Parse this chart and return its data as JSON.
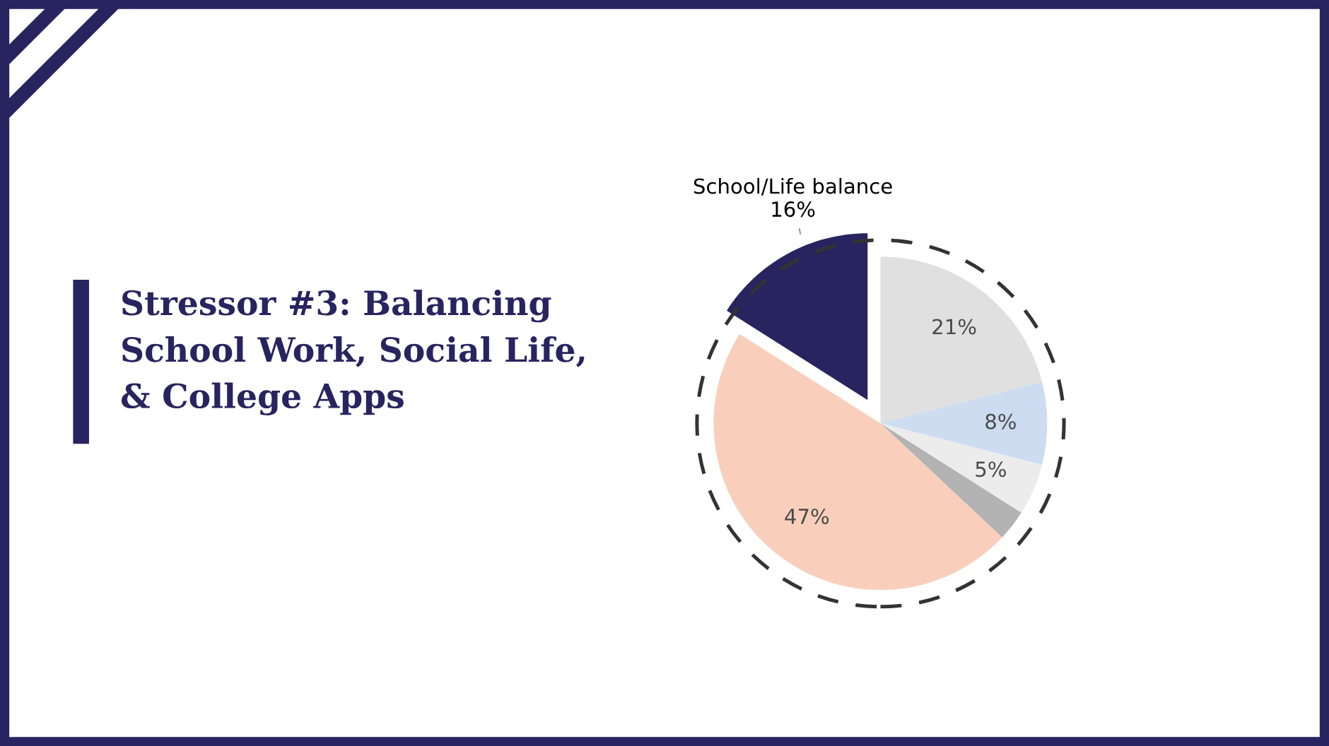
{
  "chart_data": {
    "type": "pie",
    "title": "Stressor #3: Balancing\nSchool Work, Social Life,\n& College Apps",
    "categories": [
      null,
      null,
      null,
      null,
      null,
      "School/Life balance"
    ],
    "values": [
      21,
      8,
      5,
      3,
      47,
      16
    ],
    "colors": [
      "#e0e0e0",
      "#cddcf0",
      "#ececec",
      "#b3b3b3",
      "#f9cfbc",
      "#28245f"
    ],
    "value_labels": [
      "21%",
      "8%",
      "5%",
      null,
      "47%",
      "16%"
    ]
  }
}
